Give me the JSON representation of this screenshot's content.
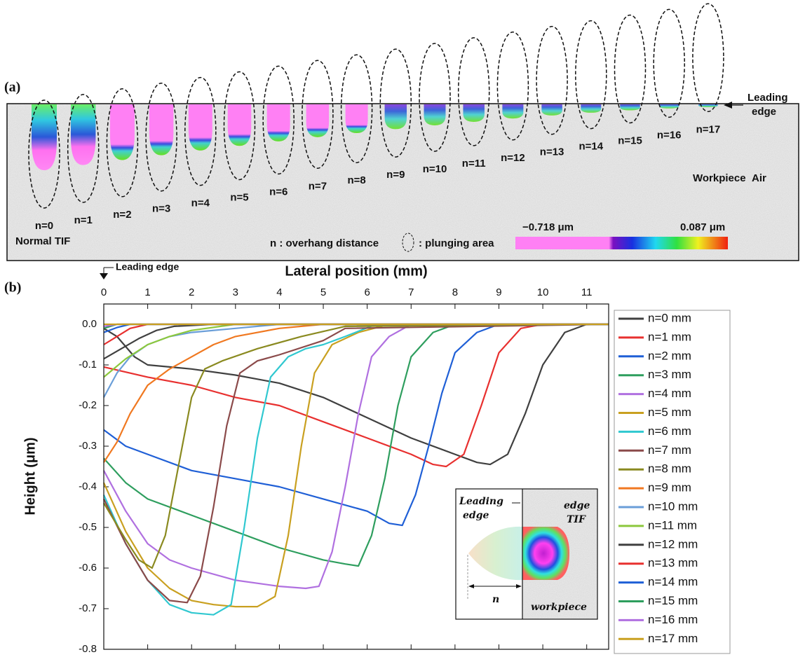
{
  "panel_a": {
    "label": "(a)",
    "leading_edge": [
      "Leading",
      "edge"
    ],
    "n_labels": [
      "n=0",
      "n=1",
      "n=2",
      "n=3",
      "n=4",
      "n=5",
      "n=6",
      "n=7",
      "n=8",
      "n=9",
      "n=10",
      "n=11",
      "n=12",
      "n=13",
      "n=14",
      "n=15",
      "n=16",
      "n=17"
    ],
    "normal_tif": "Normal TIF",
    "workpiece": "Workpiece",
    "air": "Air",
    "legend_n": "n : overhang distance",
    "legend_plunge": ": plunging area",
    "colorbar_min": "−0.718 μm",
    "colorbar_max": "0.087 μm"
  },
  "chart_data": {
    "type": "line",
    "panel_label": "(b)",
    "x_label": "Lateral position (mm)",
    "y_label": "Height (μm)",
    "leading_edge_label": "Leading edge",
    "inset": {
      "leading_edge": [
        "Leading",
        "edge"
      ],
      "edge_tif": [
        "edge",
        "TIF"
      ],
      "workpiece": "workpiece",
      "n": "n"
    },
    "xlim": [
      0,
      11.5
    ],
    "xticks": [
      0,
      1,
      2,
      3,
      4,
      5,
      6,
      7,
      8,
      9,
      10,
      11
    ],
    "ylim": [
      -0.8,
      0.05
    ],
    "yticks": [
      {
        "value": 0,
        "label": "0.0"
      },
      -0.1,
      -0.2,
      -0.3,
      -0.4,
      -0.5,
      -0.6,
      -0.7,
      -0.8
    ],
    "grid": false,
    "legend": "outside-right",
    "series": [
      {
        "name": "n=0 mm",
        "color": "#404040",
        "x": [
          0,
          0.3,
          0.7,
          1,
          1.5,
          2,
          3,
          4,
          5,
          6,
          7,
          8,
          8.5,
          8.8,
          9.2,
          9.6,
          10,
          10.5,
          11,
          11.5
        ],
        "values": [
          -0.01,
          -0.03,
          -0.08,
          -0.1,
          -0.105,
          -0.11,
          -0.125,
          -0.145,
          -0.18,
          -0.23,
          -0.28,
          -0.32,
          -0.34,
          -0.345,
          -0.32,
          -0.22,
          -0.1,
          -0.02,
          0,
          0
        ]
      },
      {
        "name": "n=1 mm",
        "color": "#e8302f",
        "x": [
          0,
          1,
          2,
          3,
          4,
          5,
          6,
          7,
          7.5,
          7.8,
          8.2,
          8.6,
          9,
          9.5,
          10,
          11.5
        ],
        "values": [
          -0.105,
          -0.13,
          -0.15,
          -0.18,
          -0.2,
          -0.24,
          -0.28,
          -0.32,
          -0.345,
          -0.35,
          -0.32,
          -0.2,
          -0.07,
          -0.01,
          0,
          0
        ]
      },
      {
        "name": "n=2 mm",
        "color": "#1f5fd6",
        "x": [
          0,
          0.5,
          1,
          2,
          3,
          4,
          5,
          6,
          6.5,
          6.8,
          7.1,
          7.4,
          7.7,
          8,
          8.5,
          9,
          11.5
        ],
        "values": [
          -0.26,
          -0.3,
          -0.32,
          -0.36,
          -0.38,
          -0.4,
          -0.43,
          -0.46,
          -0.49,
          -0.495,
          -0.42,
          -0.3,
          -0.17,
          -0.07,
          -0.02,
          0,
          0
        ]
      },
      {
        "name": "n=3 mm",
        "color": "#2e9e5e",
        "x": [
          0,
          0.5,
          1,
          2,
          3,
          4,
          5,
          5.5,
          5.8,
          6.1,
          6.4,
          6.7,
          7,
          7.5,
          8,
          11.5
        ],
        "values": [
          -0.33,
          -0.39,
          -0.43,
          -0.47,
          -0.51,
          -0.55,
          -0.58,
          -0.59,
          -0.595,
          -0.52,
          -0.38,
          -0.2,
          -0.08,
          -0.02,
          0,
          0
        ]
      },
      {
        "name": "n=4 mm",
        "color": "#b070e0",
        "x": [
          0,
          0.5,
          1,
          1.5,
          2,
          3,
          4,
          4.6,
          4.9,
          5.2,
          5.5,
          5.8,
          6.1,
          6.5,
          7,
          11.5
        ],
        "values": [
          -0.36,
          -0.46,
          -0.54,
          -0.58,
          -0.6,
          -0.63,
          -0.645,
          -0.65,
          -0.645,
          -0.56,
          -0.4,
          -0.22,
          -0.08,
          -0.03,
          0,
          0
        ]
      },
      {
        "name": "n=5 mm",
        "color": "#c9a020",
        "x": [
          0,
          0.5,
          1,
          1.5,
          2,
          2.5,
          3,
          3.5,
          3.9,
          4.2,
          4.5,
          4.8,
          5.2,
          5.8,
          6.5,
          11.5
        ],
        "values": [
          -0.39,
          -0.51,
          -0.6,
          -0.65,
          -0.68,
          -0.69,
          -0.695,
          -0.695,
          -0.67,
          -0.52,
          -0.3,
          -0.12,
          -0.05,
          -0.02,
          0,
          0
        ]
      },
      {
        "name": "n=6 mm",
        "color": "#30c8d0",
        "x": [
          0,
          0.5,
          1,
          1.5,
          2,
          2.5,
          2.9,
          3.2,
          3.5,
          3.8,
          4.2,
          4.6,
          5,
          5.5,
          6.2,
          11.5
        ],
        "values": [
          -0.42,
          -0.54,
          -0.63,
          -0.69,
          -0.71,
          -0.715,
          -0.69,
          -0.5,
          -0.28,
          -0.13,
          -0.08,
          -0.06,
          -0.05,
          -0.03,
          0,
          0
        ]
      },
      {
        "name": "n=7 mm",
        "color": "#8b4a4a",
        "x": [
          0,
          0.5,
          1,
          1.5,
          1.9,
          2.2,
          2.5,
          2.8,
          3.1,
          3.5,
          4,
          5,
          5.5,
          11.5
        ],
        "values": [
          -0.43,
          -0.54,
          -0.63,
          -0.68,
          -0.685,
          -0.62,
          -0.45,
          -0.25,
          -0.12,
          -0.09,
          -0.075,
          -0.04,
          -0.01,
          0
        ]
      },
      {
        "name": "n=8 mm",
        "color": "#8a8a20",
        "x": [
          0,
          0.5,
          0.8,
          1.1,
          1.4,
          1.7,
          2,
          2.3,
          2.7,
          3.5,
          4.5,
          5.5,
          11.5
        ],
        "values": [
          -0.44,
          -0.53,
          -0.58,
          -0.6,
          -0.52,
          -0.35,
          -0.18,
          -0.11,
          -0.09,
          -0.06,
          -0.03,
          -0.005,
          0
        ]
      },
      {
        "name": "n=9 mm",
        "color": "#f07820",
        "x": [
          0,
          0.3,
          0.6,
          1,
          1.5,
          2,
          2.5,
          3,
          4,
          5,
          11.5
        ],
        "values": [
          -0.34,
          -0.29,
          -0.22,
          -0.15,
          -0.11,
          -0.08,
          -0.05,
          -0.03,
          -0.01,
          0,
          0
        ]
      },
      {
        "name": "n=10 mm",
        "color": "#6a9ed8",
        "x": [
          0,
          0.3,
          0.6,
          1,
          1.5,
          2,
          3,
          4,
          11.5
        ],
        "values": [
          -0.18,
          -0.12,
          -0.08,
          -0.05,
          -0.03,
          -0.02,
          -0.01,
          0,
          0
        ]
      },
      {
        "name": "n=11 mm",
        "color": "#8cc83c",
        "x": [
          0,
          0.5,
          1,
          1.5,
          2,
          3,
          11.5
        ],
        "values": [
          -0.13,
          -0.085,
          -0.05,
          -0.03,
          -0.015,
          0,
          0
        ]
      },
      {
        "name": "n=12 mm",
        "color": "#404040",
        "x": [
          0,
          0.4,
          0.8,
          1.2,
          1.6,
          2.5,
          11.5
        ],
        "values": [
          -0.085,
          -0.06,
          -0.035,
          -0.015,
          -0.005,
          0,
          0
        ]
      },
      {
        "name": "n=13 mm",
        "color": "#e8302f",
        "x": [
          0,
          0.3,
          0.6,
          1,
          11.5
        ],
        "values": [
          -0.05,
          -0.03,
          -0.01,
          0,
          0
        ]
      },
      {
        "name": "n=14 mm",
        "color": "#1f5fd6",
        "x": [
          0,
          0.3,
          0.6,
          11.5
        ],
        "values": [
          -0.02,
          -0.008,
          0,
          0
        ]
      },
      {
        "name": "n=15 mm",
        "color": "#2e9e5e",
        "x": [
          0,
          0.3,
          11.5
        ],
        "values": [
          -0.01,
          0,
          0
        ]
      },
      {
        "name": "n=16 mm",
        "color": "#b070e0",
        "x": [
          0,
          0.3,
          11.5
        ],
        "values": [
          -0.005,
          0,
          0
        ]
      },
      {
        "name": "n=17 mm",
        "color": "#c9a020",
        "x": [
          0,
          11.5
        ],
        "values": [
          0,
          0
        ]
      }
    ]
  }
}
